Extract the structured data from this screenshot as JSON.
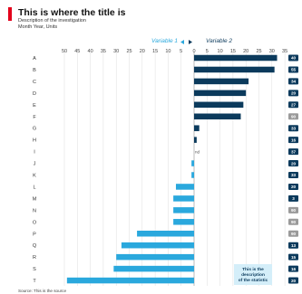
{
  "header": {
    "title": "This is where the title is",
    "subtitle": "Description of the investigation",
    "date_units": "Month Year, Units",
    "accent_color": "#e3001b"
  },
  "legend": {
    "left_label": "Variable 1",
    "right_label": "Variable 2",
    "left_color": "#2aa8dd",
    "right_color": "#0b3a5c"
  },
  "note": {
    "lines": [
      "This is the",
      "description",
      "of the statistic"
    ],
    "color": "#d4eef9"
  },
  "footer": {
    "source": "Source: This is the source"
  },
  "chart_data": {
    "type": "bar",
    "orientation": "horizontal-diverging",
    "categories": [
      "A",
      "B",
      "C",
      "D",
      "E",
      "F",
      "G",
      "H",
      "I",
      "J",
      "K",
      "L",
      "M",
      "N",
      "O",
      "P",
      "Q",
      "R",
      "S",
      "T"
    ],
    "series": [
      {
        "name": "Variable 1",
        "side": "left",
        "color": "#2aa8dd",
        "values": [
          0,
          0,
          0,
          0,
          0,
          0,
          0,
          0,
          0,
          1,
          1,
          7,
          8,
          8,
          8,
          22,
          28,
          30,
          31,
          49
        ]
      },
      {
        "name": "Variable 2",
        "side": "right",
        "color": "#0b3a5c",
        "values": [
          32,
          31,
          21,
          20,
          19,
          18,
          2,
          1,
          0,
          0,
          0,
          0,
          0,
          0,
          0,
          0,
          0,
          0,
          0,
          0
        ]
      }
    ],
    "value_labels": [
      "40",
      "55",
      "34",
      "20",
      "27",
      "90",
      "33",
      "16",
      "37",
      "20",
      "33",
      "20",
      "3",
      "90",
      "90",
      "90",
      "13",
      "15",
      "16",
      "20"
    ],
    "value_label_colors": [
      "#0b3a5c",
      "#0b3a5c",
      "#0b3a5c",
      "#0b3a5c",
      "#0b3a5c",
      "#9a9a9a",
      "#0b3a5c",
      "#0b3a5c",
      "#0b3a5c",
      "#0b3a5c",
      "#0b3a5c",
      "#0b3a5c",
      "#0b3a5c",
      "#9a9a9a",
      "#9a9a9a",
      "#9a9a9a",
      "#0b3a5c",
      "#0b3a5c",
      "#0b3a5c",
      "#0b3a5c"
    ],
    "missing_marker": "nd",
    "x_ticks_left": [
      50,
      45,
      40,
      35,
      30,
      25,
      20,
      15,
      10,
      5,
      0
    ],
    "x_ticks_right": [
      5,
      10,
      15,
      20,
      25,
      30,
      35
    ],
    "xlim_left": [
      0,
      50
    ],
    "xlim_right": [
      0,
      35
    ],
    "grid": true
  }
}
